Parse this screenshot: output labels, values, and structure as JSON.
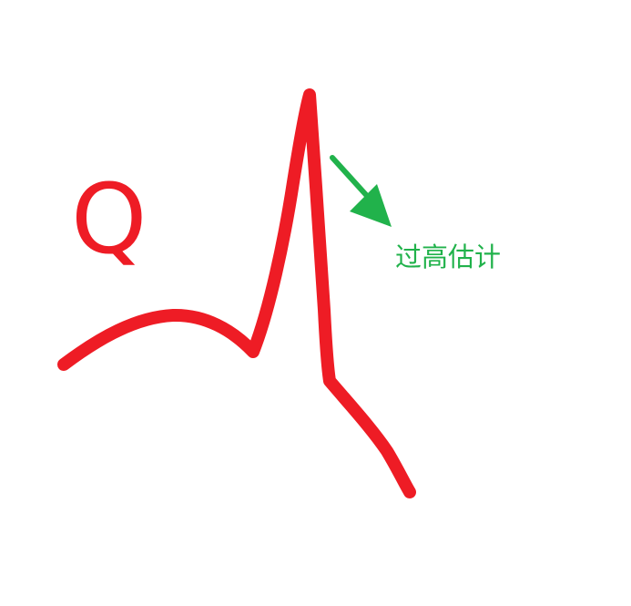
{
  "q_label": "Q",
  "annotation_text": "过高估计",
  "colors": {
    "curve": "#ee1c25",
    "arrow": "#21b24b",
    "annotation": "#21b24b",
    "q_label": "#ee1c25",
    "background": "#ffffff"
  }
}
